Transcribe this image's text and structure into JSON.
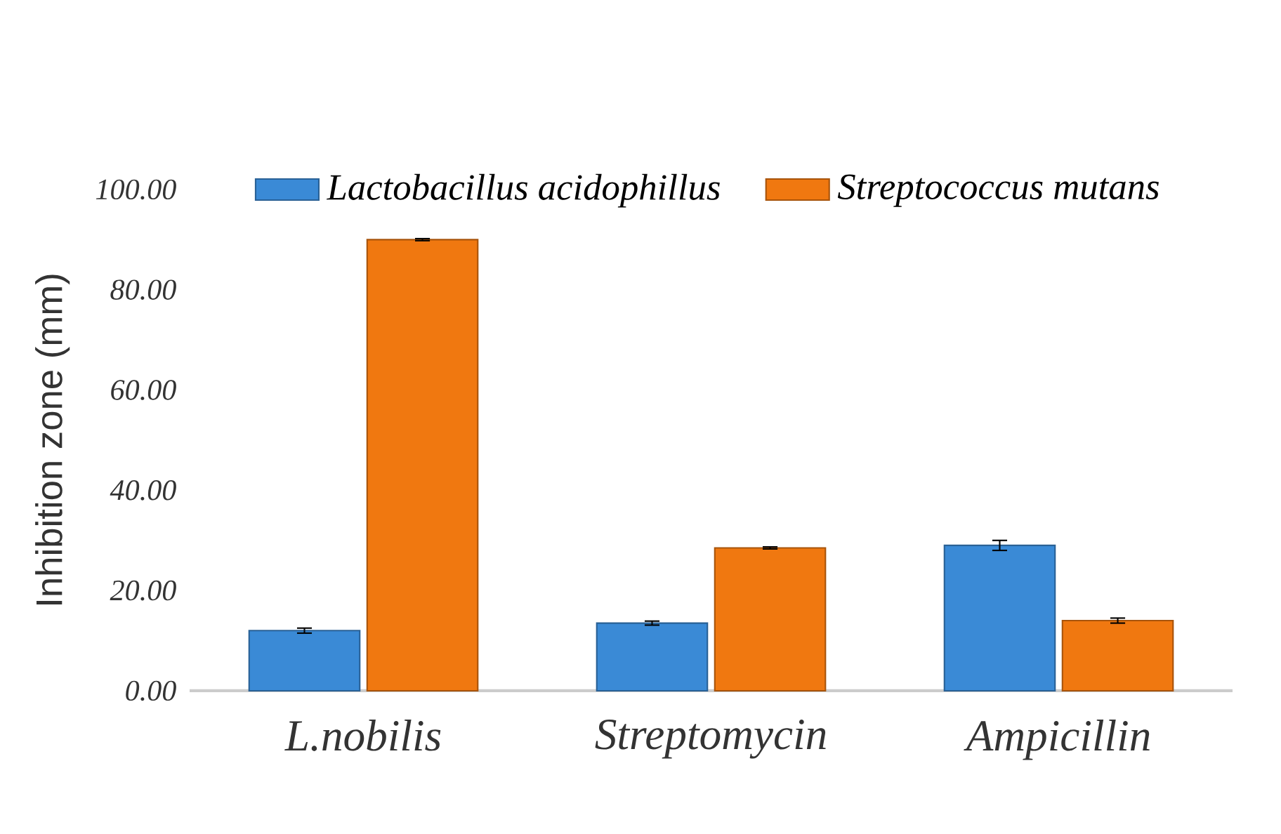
{
  "chart_data": {
    "type": "bar",
    "ylabel": "Inhibition zone (mm)",
    "categories": [
      "L.nobilis",
      "Streptomycin",
      "Ampicillin"
    ],
    "series": [
      {
        "name": "Lactobacillus acidophillus",
        "color": "#3a8ad6",
        "values": [
          12,
          13.5,
          29
        ],
        "errors": [
          0.5,
          0.4,
          1
        ]
      },
      {
        "name": "Streptococcus mutans",
        "color": "#f07810",
        "values": [
          90,
          28.5,
          14
        ],
        "errors": [
          0.2,
          0.2,
          0.5
        ]
      }
    ],
    "ylim": [
      0,
      100
    ],
    "yticks": [
      {
        "value": 0,
        "label": "0.00"
      },
      {
        "value": 20,
        "label": "20.00"
      },
      {
        "value": 40,
        "label": "40.00"
      },
      {
        "value": 60,
        "label": "60.00"
      },
      {
        "value": 80,
        "label": "80.00"
      },
      {
        "value": 100,
        "label": "100.00"
      }
    ],
    "legend": "top"
  }
}
